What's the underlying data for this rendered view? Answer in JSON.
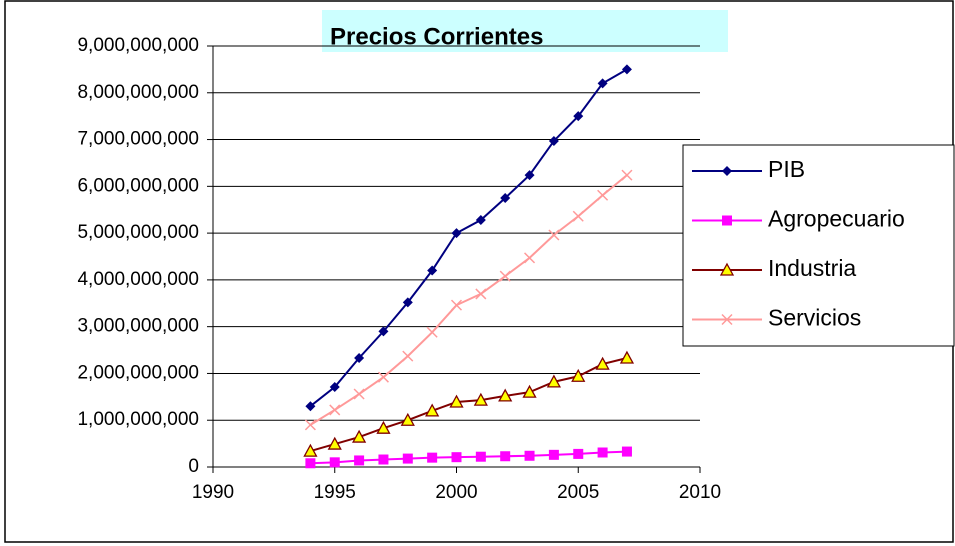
{
  "chart_data": {
    "type": "line",
    "title": "Precios Corrientes",
    "x": [
      1994,
      1995,
      1996,
      1997,
      1998,
      1999,
      2000,
      2001,
      2002,
      2003,
      2004,
      2005,
      2006,
      2007
    ],
    "series": [
      {
        "name": "PIB",
        "color": "#000080",
        "marker": "diamond",
        "values": [
          1300000000,
          1710000000,
          2330000000,
          2900000000,
          3520000000,
          4200000000,
          5000000000,
          5280000000,
          5750000000,
          6240000000,
          6970000000,
          7500000000,
          8200000000,
          8500000000
        ]
      },
      {
        "name": "Agropecuario",
        "color": "#ff00ff",
        "marker": "square",
        "values": [
          80000000,
          100000000,
          140000000,
          160000000,
          180000000,
          200000000,
          210000000,
          220000000,
          230000000,
          240000000,
          260000000,
          280000000,
          310000000,
          330000000
        ]
      },
      {
        "name": "Industria",
        "color": "#800000",
        "marker": "triangle",
        "values": [
          340000000,
          490000000,
          640000000,
          830000000,
          1000000000,
          1200000000,
          1390000000,
          1430000000,
          1520000000,
          1600000000,
          1820000000,
          1940000000,
          2200000000,
          2330000000
        ]
      },
      {
        "name": "Servicios",
        "color": "#ff9999",
        "marker": "x",
        "values": [
          900000000,
          1220000000,
          1560000000,
          1920000000,
          2370000000,
          2880000000,
          3460000000,
          3700000000,
          4080000000,
          4470000000,
          4960000000,
          5360000000,
          5810000000,
          6240000000
        ]
      }
    ],
    "xlim": [
      1990,
      2010
    ],
    "xticks": [
      1990,
      1995,
      2000,
      2005,
      2010
    ],
    "ylim": [
      0,
      9000000000
    ],
    "yticks": [
      0,
      {
        "value": 1000000000,
        "label": "1,000,000,000"
      },
      {
        "value": 2000000000,
        "label": "2,000,000,000"
      },
      {
        "value": 3000000000,
        "label": "3,000,000,000"
      },
      {
        "value": 4000000000,
        "label": "4,000,000,000"
      },
      {
        "value": 5000000000,
        "label": "5,000,000,000"
      },
      {
        "value": 6000000000,
        "label": "6,000,000,000"
      },
      {
        "value": 7000000000,
        "label": "7,000,000,000"
      },
      {
        "value": 8000000000,
        "label": "8,000,000,000"
      },
      {
        "value": 9000000000,
        "label": "9,000,000,000"
      }
    ],
    "grid": true,
    "legend": "right"
  }
}
